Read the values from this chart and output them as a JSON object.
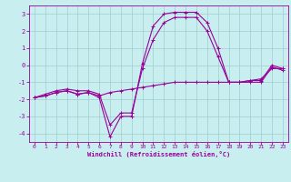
{
  "title": "",
  "xlabel": "Windchill (Refroidissement éolien,°C)",
  "bg_color": "#c8eef0",
  "line_color": "#990099",
  "grid_color": "#9ecece",
  "xlim": [
    -0.5,
    23.5
  ],
  "ylim": [
    -4.5,
    3.5
  ],
  "yticks": [
    -4,
    -3,
    -2,
    -1,
    0,
    1,
    2,
    3
  ],
  "xticks": [
    0,
    1,
    2,
    3,
    4,
    5,
    6,
    7,
    8,
    9,
    10,
    11,
    12,
    13,
    14,
    15,
    16,
    17,
    18,
    19,
    20,
    21,
    22,
    23
  ],
  "line1_x": [
    0,
    1,
    2,
    3,
    4,
    5,
    6,
    7,
    8,
    9,
    10,
    11,
    12,
    13,
    14,
    15,
    16,
    17,
    18,
    19,
    20,
    21,
    22,
    23
  ],
  "line1_y": [
    -1.9,
    -1.8,
    -1.6,
    -1.5,
    -1.7,
    -1.6,
    -1.8,
    -1.6,
    -1.5,
    -1.4,
    -1.3,
    -1.2,
    -1.1,
    -1.0,
    -1.0,
    -1.0,
    -1.0,
    -1.0,
    -1.0,
    -1.0,
    -0.9,
    -0.8,
    -0.2,
    -0.2
  ],
  "line2_x": [
    0,
    1,
    2,
    3,
    4,
    5,
    6,
    7,
    8,
    9,
    10,
    11,
    12,
    13,
    14,
    15,
    16,
    17,
    18,
    19,
    20,
    21,
    22,
    23
  ],
  "line2_y": [
    -1.9,
    -1.8,
    -1.6,
    -1.5,
    -1.7,
    -1.6,
    -1.9,
    -4.2,
    -3.0,
    -3.0,
    0.1,
    2.3,
    3.0,
    3.1,
    3.1,
    3.1,
    2.5,
    1.0,
    -1.0,
    -1.0,
    -1.0,
    -1.0,
    -0.1,
    -0.3
  ],
  "line3_x": [
    0,
    1,
    2,
    3,
    4,
    5,
    6,
    7,
    8,
    9,
    10,
    11,
    12,
    13,
    14,
    15,
    16,
    17,
    18,
    19,
    20,
    21,
    22,
    23
  ],
  "line3_y": [
    -1.9,
    -1.7,
    -1.5,
    -1.4,
    -1.5,
    -1.5,
    -1.7,
    -3.5,
    -2.8,
    -2.8,
    -0.2,
    1.5,
    2.5,
    2.8,
    2.8,
    2.8,
    2.0,
    0.5,
    -1.0,
    -1.0,
    -0.9,
    -0.9,
    0.0,
    -0.2
  ]
}
